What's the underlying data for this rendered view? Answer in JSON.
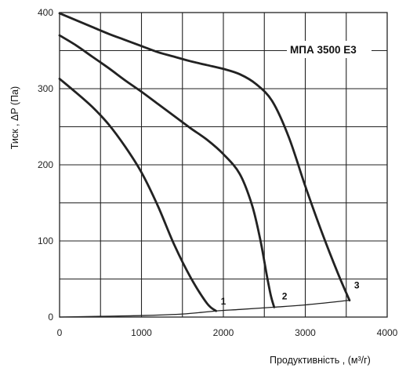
{
  "chart_data": {
    "type": "line",
    "title": "",
    "annotation": "МПА 3500 Е3",
    "xlabel": "Продуктивність , (м³/г)",
    "ylabel": "Тиск , ΔP (Па)",
    "xlim": [
      0,
      4000
    ],
    "ylim": [
      0,
      400
    ],
    "x_ticks": [
      0,
      1000,
      2000,
      3000,
      4000
    ],
    "y_ticks": [
      0,
      100,
      200,
      300,
      400
    ],
    "grid": true,
    "colors": {
      "curves": "#222222",
      "grid": "#222222",
      "system": "#222222"
    },
    "series": [
      {
        "name": "1",
        "x": [
          0,
          200,
          400,
          600,
          800,
          1000,
          1200,
          1400,
          1600,
          1800,
          1910
        ],
        "y": [
          313,
          295,
          276,
          253,
          224,
          190,
          146,
          95,
          52,
          18,
          8
        ]
      },
      {
        "name": "2",
        "x": [
          0,
          200,
          400,
          600,
          800,
          1000,
          1200,
          1400,
          1600,
          1800,
          2000,
          2200,
          2350,
          2450,
          2530,
          2580,
          2620
        ],
        "y": [
          370,
          357,
          342,
          327,
          311,
          296,
          280,
          264,
          248,
          233,
          214,
          188,
          147,
          102,
          55,
          28,
          13
        ]
      },
      {
        "name": "3",
        "x": [
          0,
          200,
          400,
          600,
          800,
          1000,
          1200,
          1400,
          1600,
          1800,
          2000,
          2200,
          2400,
          2600,
          2800,
          3000,
          3200,
          3400,
          3540
        ],
        "y": [
          399,
          390,
          381,
          372,
          364,
          356,
          348,
          342,
          336,
          331,
          326,
          319,
          306,
          283,
          236,
          172,
          112,
          57,
          22
        ]
      }
    ],
    "system_curve": {
      "x": [
        0,
        500,
        1000,
        1500,
        1910,
        2200,
        2620,
        3000,
        3540
      ],
      "y": [
        0,
        1,
        2,
        4,
        8,
        10,
        13,
        16,
        22
      ]
    }
  }
}
